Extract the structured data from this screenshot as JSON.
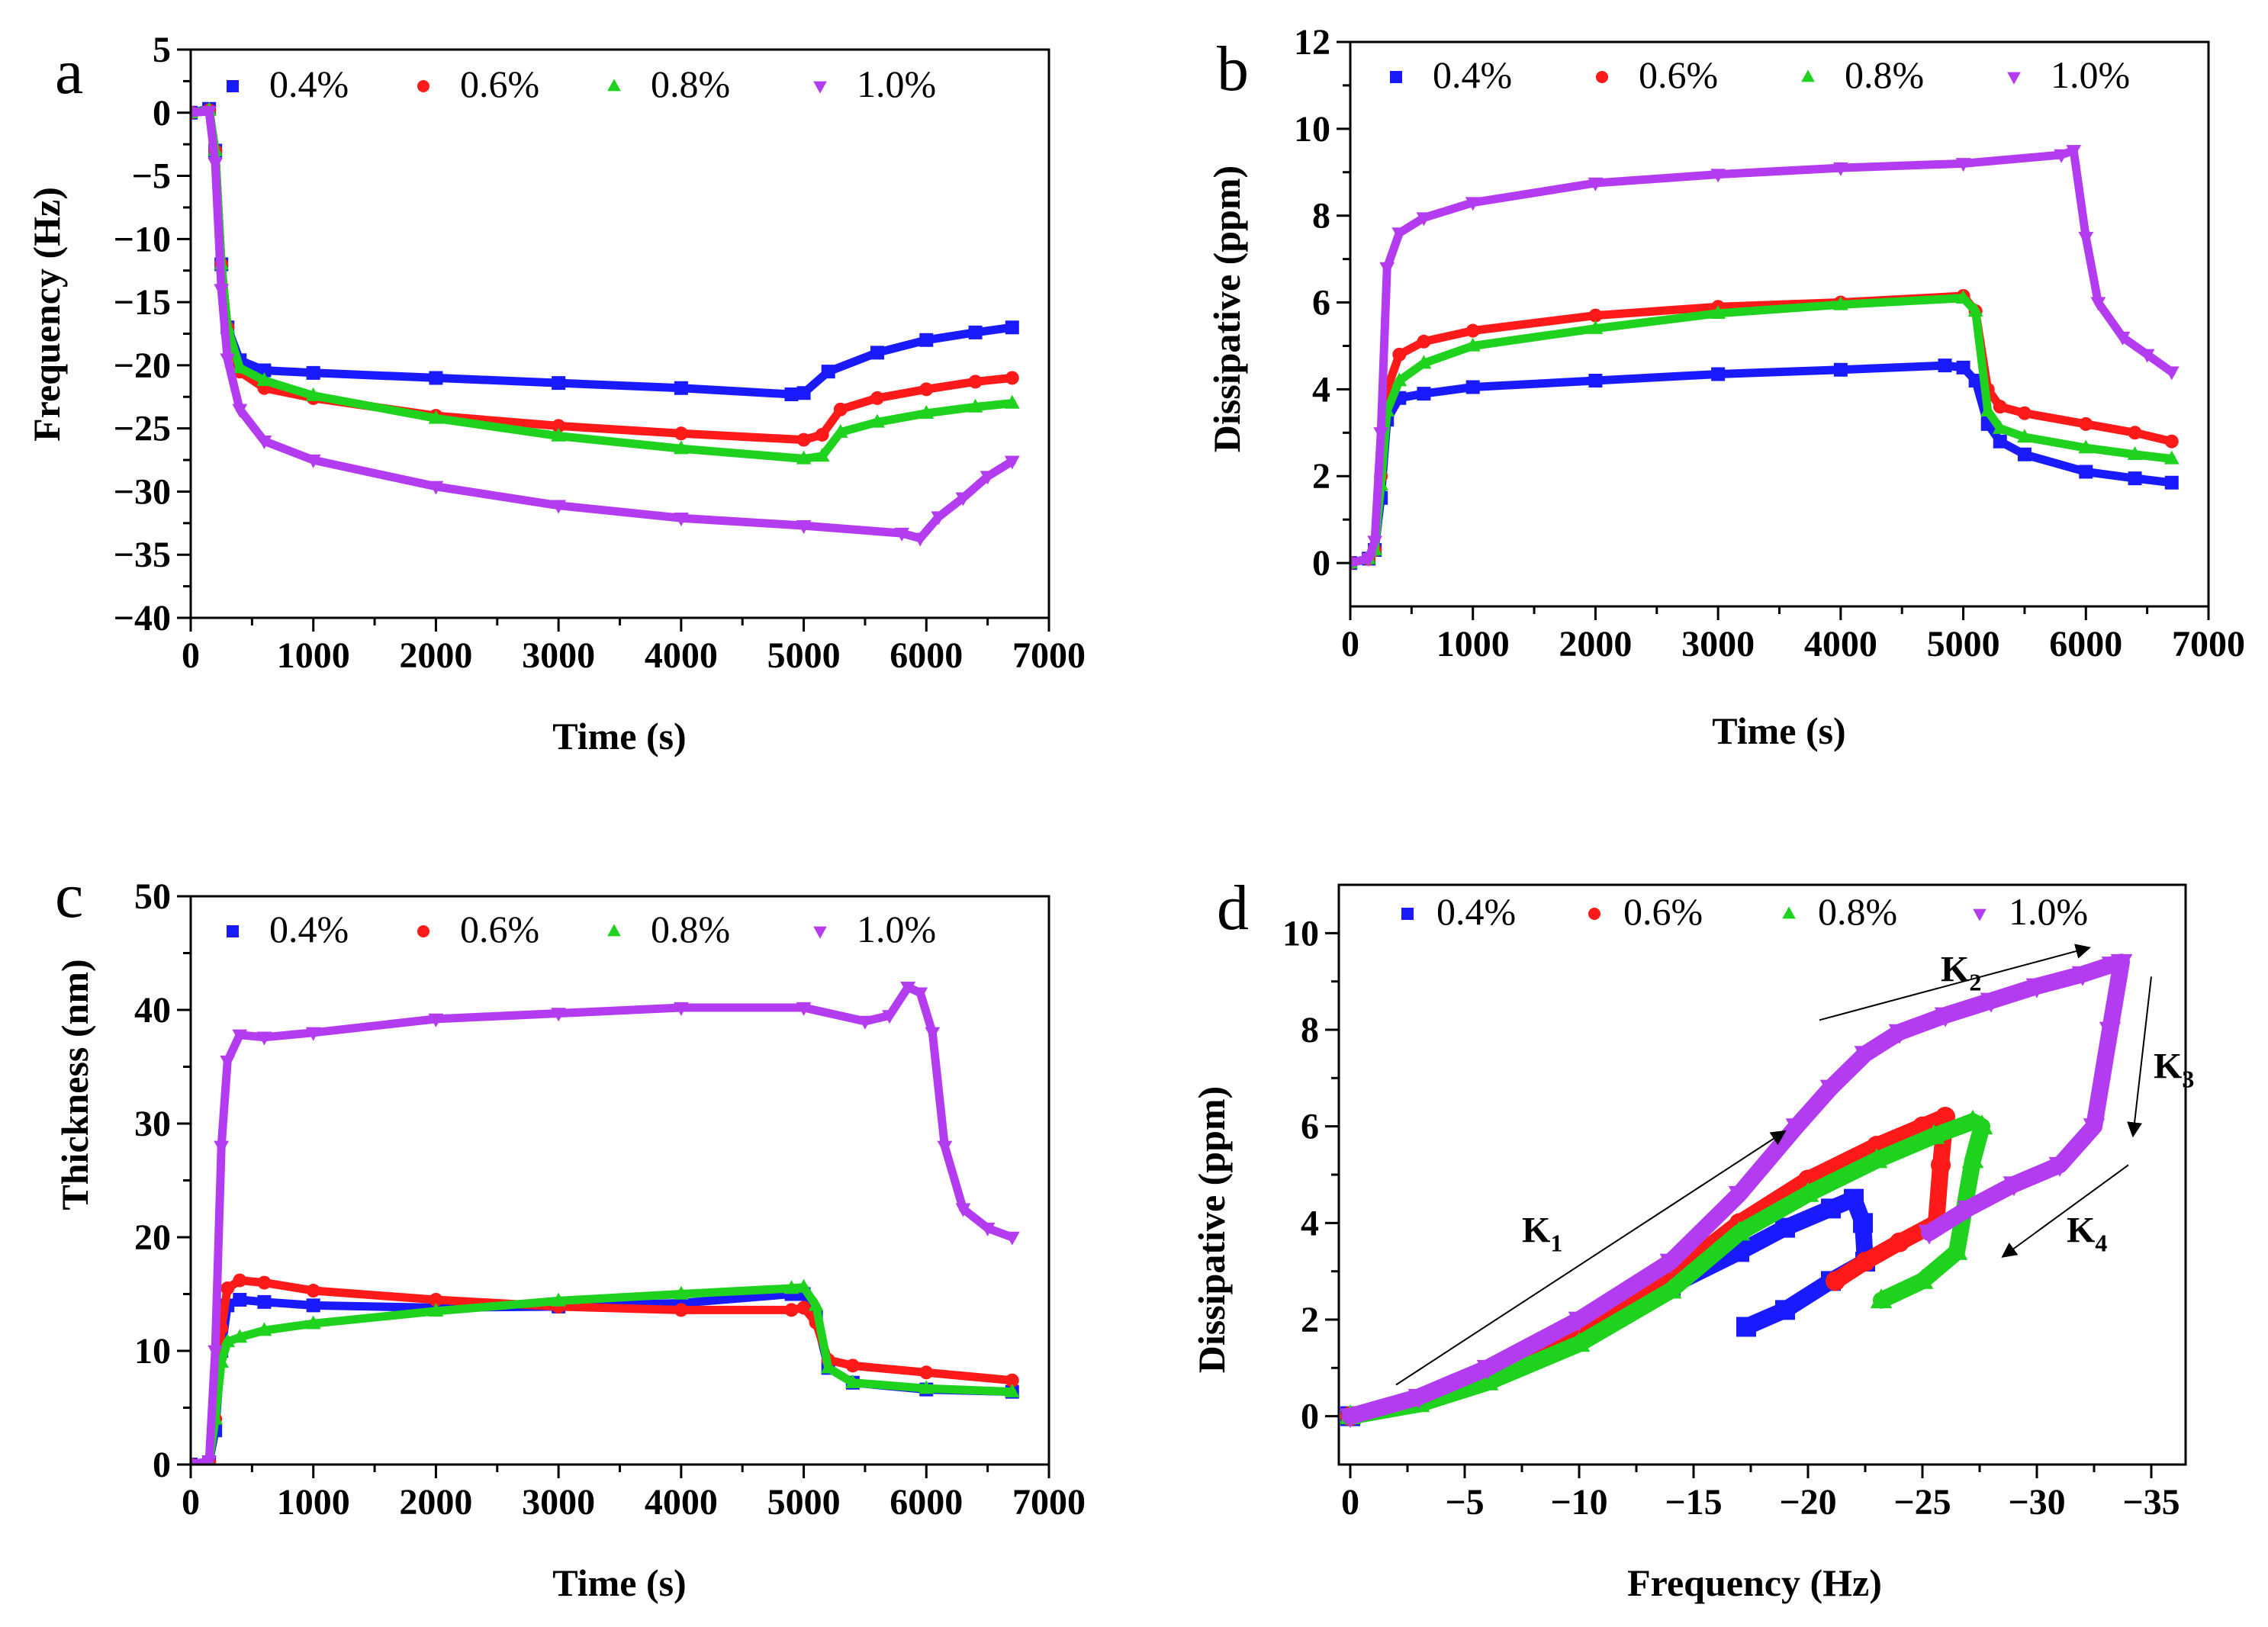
{
  "series_colors": {
    "0.4%": "#1a1aff",
    "0.6%": "#ff1a1a",
    "0.8%": "#1ed21e",
    "1.0%": "#b43cf0"
  },
  "chart_data": [
    {
      "id": "a",
      "type": "line",
      "panel_label": "a",
      "xlabel": "Time (s)",
      "ylabel": "Frequency (Hz)",
      "xlim": [
        0,
        7000
      ],
      "ylim": [
        -40,
        5
      ],
      "xticks": [
        0,
        1000,
        2000,
        3000,
        4000,
        5000,
        6000,
        7000
      ],
      "xtick_labels": [
        "0",
        "1000",
        "2000",
        "3000",
        "4000",
        "5000",
        "6000",
        "7000"
      ],
      "yticks": [
        5,
        0,
        -5,
        -10,
        -15,
        -20,
        -25,
        -30,
        -35,
        -40
      ],
      "ytick_labels": [
        "5",
        "0",
        "−5",
        "−10",
        "−15",
        "−20",
        "−25",
        "−30",
        "−35",
        "−40"
      ],
      "legend": [
        "0.4%",
        "0.6%",
        "0.8%",
        "1.0%"
      ],
      "series": [
        {
          "name": "0.4%",
          "marker": "square",
          "x": [
            0,
            150,
            200,
            250,
            300,
            400,
            600,
            1000,
            2000,
            3000,
            4000,
            4900,
            5000,
            5200,
            5600,
            6000,
            6400,
            6700
          ],
          "y": [
            0,
            0.3,
            -3,
            -12,
            -17,
            -19.6,
            -20.4,
            -20.6,
            -21,
            -21.4,
            -21.8,
            -22.3,
            -22.2,
            -20.5,
            -19,
            -18,
            -17.4,
            -17
          ]
        },
        {
          "name": "0.6%",
          "marker": "circle",
          "x": [
            0,
            150,
            200,
            250,
            300,
            400,
            600,
            1000,
            2000,
            3000,
            4000,
            5000,
            5150,
            5300,
            5600,
            6000,
            6400,
            6700
          ],
          "y": [
            0,
            0.2,
            -3,
            -12,
            -17,
            -20.5,
            -21.8,
            -22.6,
            -24,
            -24.8,
            -25.4,
            -25.9,
            -25.5,
            -23.5,
            -22.6,
            -21.9,
            -21.3,
            -21
          ]
        },
        {
          "name": "0.8%",
          "marker": "triangle-up",
          "x": [
            0,
            150,
            200,
            250,
            300,
            400,
            600,
            1000,
            2000,
            3000,
            4000,
            5000,
            5150,
            5300,
            5600,
            6000,
            6400,
            6700
          ],
          "y": [
            0,
            0.2,
            -3,
            -12,
            -17,
            -20.2,
            -21.2,
            -22.4,
            -24.2,
            -25.6,
            -26.6,
            -27.4,
            -27.2,
            -25.3,
            -24.5,
            -23.8,
            -23.3,
            -23
          ]
        },
        {
          "name": "1.0%",
          "marker": "triangle-down",
          "x": [
            0,
            150,
            200,
            250,
            300,
            400,
            600,
            1000,
            2000,
            3000,
            4000,
            5000,
            5800,
            5950,
            6100,
            6300,
            6500,
            6700
          ],
          "y": [
            0,
            0.1,
            -4,
            -14,
            -19.5,
            -23.5,
            -26,
            -27.5,
            -29.6,
            -31.1,
            -32.1,
            -32.7,
            -33.3,
            -33.7,
            -32,
            -30.5,
            -28.8,
            -27.6
          ]
        }
      ]
    },
    {
      "id": "b",
      "type": "line",
      "panel_label": "b",
      "xlabel": "Time (s)",
      "ylabel": "Dissipative (ppm)",
      "xlim": [
        0,
        7000
      ],
      "ylim": [
        -1,
        12
      ],
      "xticks": [
        0,
        1000,
        2000,
        3000,
        4000,
        5000,
        6000,
        7000
      ],
      "xtick_labels": [
        "0",
        "1000",
        "2000",
        "3000",
        "4000",
        "5000",
        "6000",
        "7000"
      ],
      "yticks": [
        0,
        2,
        4,
        6,
        8,
        10,
        12
      ],
      "ytick_labels": [
        "0",
        "2",
        "4",
        "6",
        "8",
        "10",
        "12"
      ],
      "legend": [
        "0.4%",
        "0.6%",
        "0.8%",
        "1.0%"
      ],
      "series": [
        {
          "name": "0.4%",
          "marker": "square",
          "x": [
            0,
            150,
            200,
            250,
            300,
            400,
            600,
            1000,
            2000,
            3000,
            4000,
            4850,
            5000,
            5100,
            5200,
            5300,
            5500,
            6000,
            6400,
            6700
          ],
          "y": [
            0,
            0.1,
            0.3,
            1.5,
            3.3,
            3.8,
            3.9,
            4.05,
            4.2,
            4.35,
            4.45,
            4.55,
            4.5,
            4.2,
            3.2,
            2.8,
            2.5,
            2.1,
            1.95,
            1.85
          ]
        },
        {
          "name": "0.6%",
          "marker": "circle",
          "x": [
            0,
            150,
            200,
            250,
            300,
            400,
            600,
            1000,
            2000,
            3000,
            4000,
            5000,
            5100,
            5200,
            5300,
            5500,
            6000,
            6400,
            6700
          ],
          "y": [
            0,
            0.1,
            0.3,
            2,
            4,
            4.8,
            5.1,
            5.35,
            5.7,
            5.9,
            6.0,
            6.15,
            5.8,
            4,
            3.6,
            3.45,
            3.2,
            3.0,
            2.8
          ]
        },
        {
          "name": "0.8%",
          "marker": "triangle-up",
          "x": [
            0,
            150,
            200,
            250,
            300,
            400,
            600,
            1000,
            2000,
            3000,
            4000,
            5000,
            5100,
            5200,
            5300,
            5500,
            6000,
            6400,
            6700
          ],
          "y": [
            0,
            0.1,
            0.3,
            1.8,
            3.5,
            4.2,
            4.6,
            5.0,
            5.4,
            5.75,
            5.95,
            6.1,
            5.8,
            3.5,
            3.1,
            2.9,
            2.65,
            2.5,
            2.4
          ]
        },
        {
          "name": "1.0%",
          "marker": "triangle-down",
          "x": [
            0,
            150,
            200,
            250,
            300,
            400,
            600,
            1000,
            2000,
            3000,
            4000,
            5000,
            5800,
            5900,
            6000,
            6100,
            6300,
            6500,
            6700
          ],
          "y": [
            0,
            0.1,
            0.5,
            3,
            6.8,
            7.6,
            7.95,
            8.3,
            8.75,
            8.95,
            9.1,
            9.2,
            9.4,
            9.5,
            7.5,
            6,
            5.2,
            4.8,
            4.4
          ]
        }
      ]
    },
    {
      "id": "c",
      "type": "line",
      "panel_label": "c",
      "xlabel": "Time (s)",
      "ylabel": "Thickness (nm)",
      "xlim": [
        0,
        7000
      ],
      "ylim": [
        0,
        50
      ],
      "xticks": [
        0,
        1000,
        2000,
        3000,
        4000,
        5000,
        6000,
        7000
      ],
      "xtick_labels": [
        "0",
        "1000",
        "2000",
        "3000",
        "4000",
        "5000",
        "6000",
        "7000"
      ],
      "yticks": [
        0,
        10,
        20,
        30,
        40,
        50
      ],
      "ytick_labels": [
        "0",
        "10",
        "20",
        "30",
        "40",
        "50"
      ],
      "legend": [
        "0.4%",
        "0.6%",
        "0.8%",
        "1.0%"
      ],
      "series": [
        {
          "name": "0.4%",
          "marker": "square",
          "x": [
            0,
            150,
            200,
            250,
            300,
            400,
            600,
            1000,
            2000,
            3000,
            4000,
            4900,
            5000,
            5100,
            5200,
            5400,
            6000,
            6700
          ],
          "y": [
            0,
            0.2,
            3,
            10,
            14,
            14.5,
            14.3,
            14,
            13.8,
            13.9,
            14.2,
            15,
            15,
            13,
            8.5,
            7.2,
            6.6,
            6.4
          ]
        },
        {
          "name": "0.6%",
          "marker": "circle",
          "x": [
            0,
            150,
            200,
            250,
            300,
            400,
            600,
            1000,
            2000,
            3000,
            4000,
            4900,
            5000,
            5100,
            5200,
            5400,
            6000,
            6700
          ],
          "y": [
            0,
            0.2,
            4,
            12,
            15.5,
            16.2,
            16,
            15.3,
            14.5,
            13.9,
            13.6,
            13.6,
            13.8,
            12.5,
            9.2,
            8.7,
            8.1,
            7.4
          ]
        },
        {
          "name": "0.8%",
          "marker": "triangle-up",
          "x": [
            0,
            150,
            200,
            250,
            300,
            400,
            600,
            1000,
            2000,
            3000,
            4000,
            4900,
            5000,
            5100,
            5200,
            5400,
            6000,
            6700
          ],
          "y": [
            0,
            0.2,
            4,
            9,
            10.8,
            11.2,
            11.8,
            12.4,
            13.5,
            14.4,
            15,
            15.5,
            15.6,
            14,
            8.5,
            7.2,
            6.7,
            6.4
          ]
        },
        {
          "name": "1.0%",
          "marker": "triangle-down",
          "x": [
            0,
            150,
            200,
            250,
            300,
            400,
            600,
            1000,
            2000,
            3000,
            4000,
            5000,
            5500,
            5700,
            5850,
            5950,
            6050,
            6150,
            6300,
            6500,
            6700
          ],
          "y": [
            0,
            0.3,
            10,
            28,
            35.5,
            37.8,
            37.6,
            38,
            39.2,
            39.7,
            40.2,
            40.2,
            39,
            39.5,
            42,
            41.5,
            38,
            28,
            22.5,
            20.8,
            20
          ]
        }
      ]
    },
    {
      "id": "d",
      "type": "scatter",
      "panel_label": "d",
      "xlabel": "Frequency (Hz)",
      "ylabel": "Dissipative (ppm)",
      "xlim": [
        0.5,
        -36.5
      ],
      "ylim": [
        -1,
        11
      ],
      "xticks": [
        0,
        -5,
        -10,
        -15,
        -20,
        -25,
        -30,
        -35
      ],
      "xtick_labels": [
        "0",
        "−5",
        "−10",
        "−15",
        "−20",
        "−25",
        "−30",
        "−35"
      ],
      "yticks": [
        0,
        2,
        4,
        6,
        8,
        10
      ],
      "ytick_labels": [
        "0",
        "2",
        "4",
        "6",
        "8",
        "10"
      ],
      "legend": [
        "0.4%",
        "0.6%",
        "0.8%",
        "1.0%"
      ],
      "annotations": [
        {
          "base": "K",
          "sub": "1",
          "x": -7.5,
          "y": 3.6
        },
        {
          "base": "K",
          "sub": "2",
          "x": -25.8,
          "y": 9.0
        },
        {
          "base": "K",
          "sub": "3",
          "x": -35.1,
          "y": 7.0
        },
        {
          "base": "K",
          "sub": "4",
          "x": -31.3,
          "y": 3.6
        }
      ],
      "series": [
        {
          "name": "0.4%",
          "marker": "square",
          "x": [
            0,
            -3,
            -6,
            -10,
            -14,
            -17,
            -19,
            -21,
            -22,
            -22.4,
            -22.5,
            -21,
            -19,
            -17.3
          ],
          "y": [
            0,
            0.3,
            0.8,
            1.7,
            2.7,
            3.4,
            3.9,
            4.3,
            4.5,
            4.0,
            3.2,
            2.8,
            2.2,
            1.85
          ]
        },
        {
          "name": "0.6%",
          "marker": "circle",
          "x": [
            0,
            -3,
            -6,
            -10,
            -14,
            -17,
            -20,
            -23,
            -25,
            -26,
            -25.8,
            -25.6,
            -24,
            -22.5,
            -21.2
          ],
          "y": [
            0,
            0.3,
            0.8,
            1.7,
            2.9,
            4.0,
            4.9,
            5.6,
            6.0,
            6.2,
            5.2,
            4.0,
            3.6,
            3.2,
            2.8
          ]
        },
        {
          "name": "0.8%",
          "marker": "triangle-up",
          "x": [
            0,
            -3,
            -6,
            -10,
            -14,
            -17,
            -20,
            -23,
            -25.5,
            -27.2,
            -27.6,
            -27.2,
            -26.5,
            -25,
            -23.2
          ],
          "y": [
            0,
            0.25,
            0.7,
            1.5,
            2.6,
            3.8,
            4.6,
            5.3,
            5.8,
            6.1,
            6.0,
            5.3,
            3.4,
            2.8,
            2.4
          ]
        },
        {
          "name": "1.0%",
          "marker": "triangle-down",
          "x": [
            0,
            -3,
            -6,
            -10,
            -14,
            -17,
            -19.5,
            -21,
            -22.5,
            -24,
            -26,
            -28,
            -30,
            -32,
            -33.3,
            -33.7,
            -33.2,
            -32.5,
            -31,
            -29,
            -27,
            -25.3
          ],
          "y": [
            0,
            0.4,
            1.0,
            2.0,
            3.2,
            4.6,
            6.0,
            6.8,
            7.5,
            7.95,
            8.3,
            8.6,
            8.9,
            9.15,
            9.35,
            9.4,
            8.0,
            6.0,
            5.2,
            4.8,
            4.3,
            3.8
          ]
        }
      ]
    }
  ]
}
